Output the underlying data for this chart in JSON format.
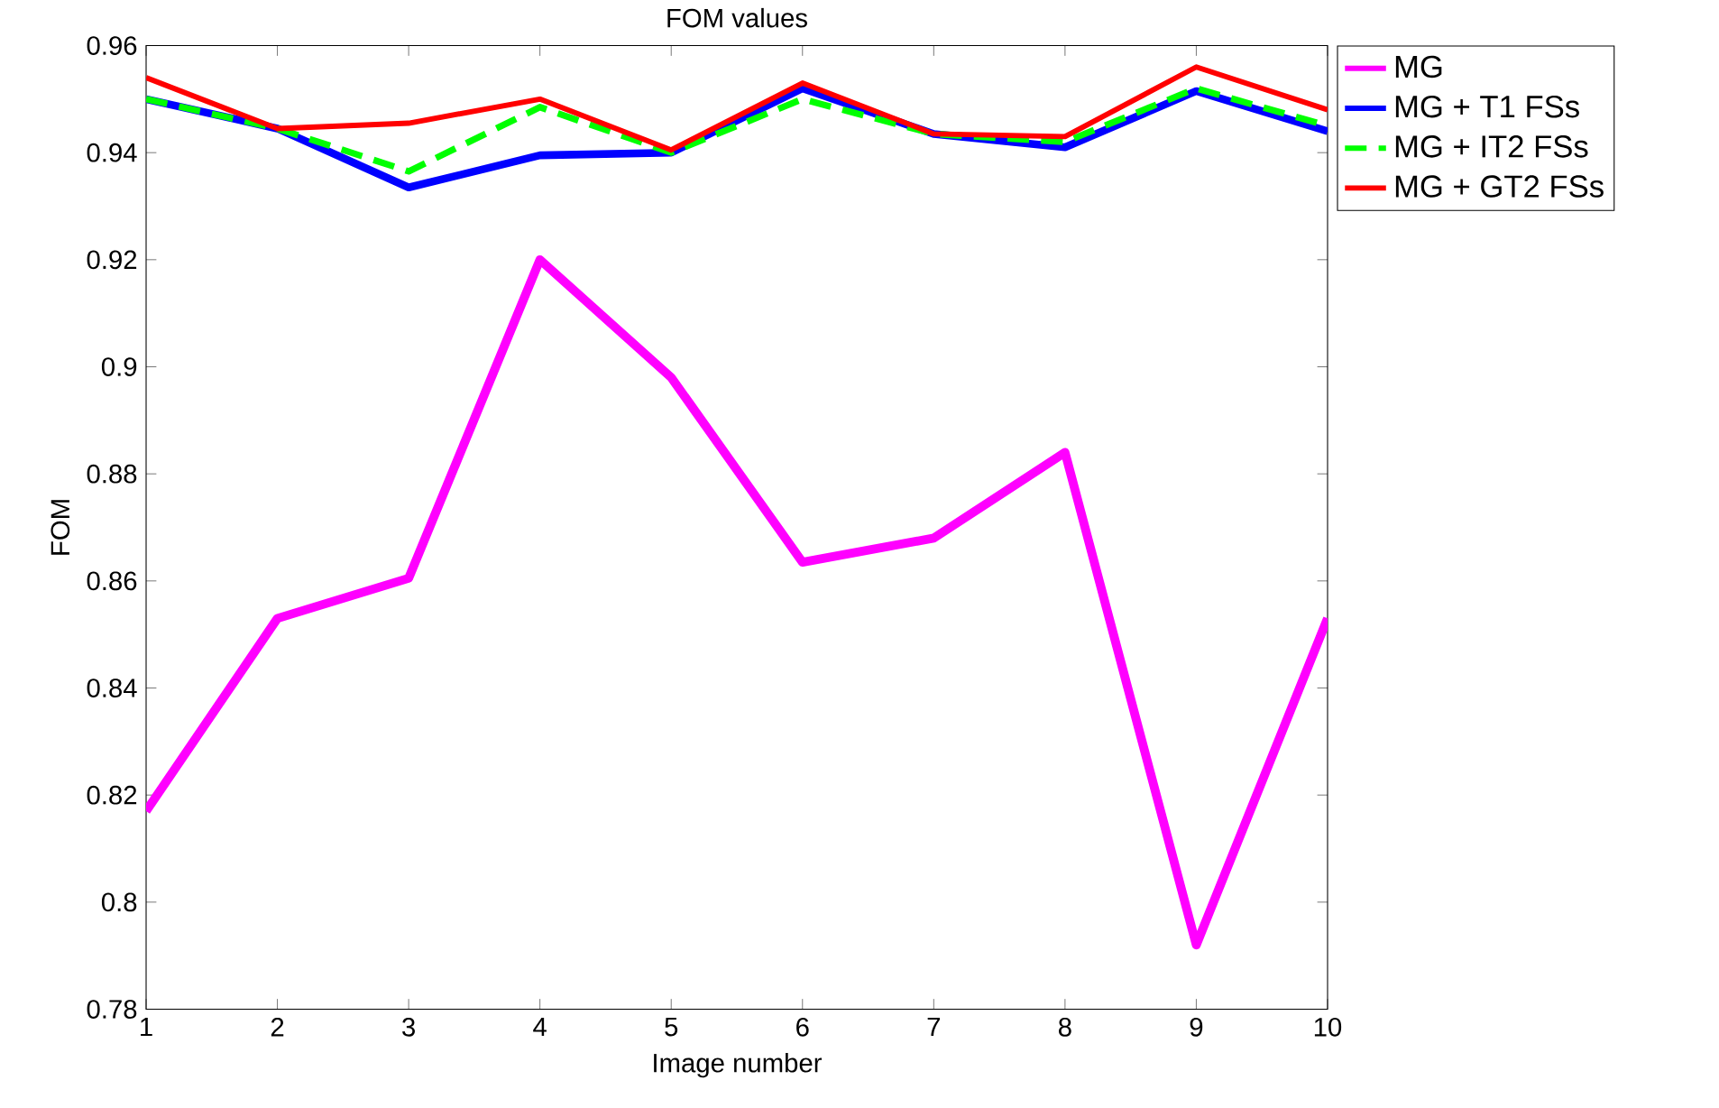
{
  "chart_data": {
    "type": "line",
    "title": "FOM values",
    "xlabel": "Image number",
    "ylabel": "FOM",
    "x": [
      1,
      2,
      3,
      4,
      5,
      6,
      7,
      8,
      9,
      10
    ],
    "series": [
      {
        "name": "MG",
        "color": "#ff00ff",
        "line_style": "solid",
        "values": [
          0.817,
          0.853,
          0.8605,
          0.92,
          0.898,
          0.8635,
          0.868,
          0.884,
          0.792,
          0.853
        ]
      },
      {
        "name": "MG + T1 FSs",
        "color": "#0000ff",
        "line_style": "solid",
        "values": [
          0.95,
          0.9445,
          0.9335,
          0.9395,
          0.94,
          0.952,
          0.9435,
          0.941,
          0.9515,
          0.944
        ]
      },
      {
        "name": "MG + IT2 FSs",
        "color": "#00ff00",
        "line_style": "dashed",
        "values": [
          0.95,
          0.9445,
          0.9365,
          0.9485,
          0.94,
          0.95,
          0.9435,
          0.942,
          0.952,
          0.945
        ]
      },
      {
        "name": "MG + GT2 FSs",
        "color": "#ff0000",
        "line_style": "solid",
        "values": [
          0.954,
          0.9445,
          0.9455,
          0.95,
          0.9405,
          0.953,
          0.9435,
          0.943,
          0.956,
          0.948
        ]
      }
    ],
    "xlim": [
      1,
      10
    ],
    "xticks": [
      1,
      2,
      3,
      4,
      5,
      6,
      7,
      8,
      9,
      10
    ],
    "ylim": [
      0.78,
      0.96
    ],
    "yticks": [
      0.78,
      0.8,
      0.82,
      0.84,
      0.86,
      0.88,
      0.9,
      0.92,
      0.94,
      0.96
    ],
    "grid": false,
    "legend": "top right",
    "marker": "none"
  }
}
